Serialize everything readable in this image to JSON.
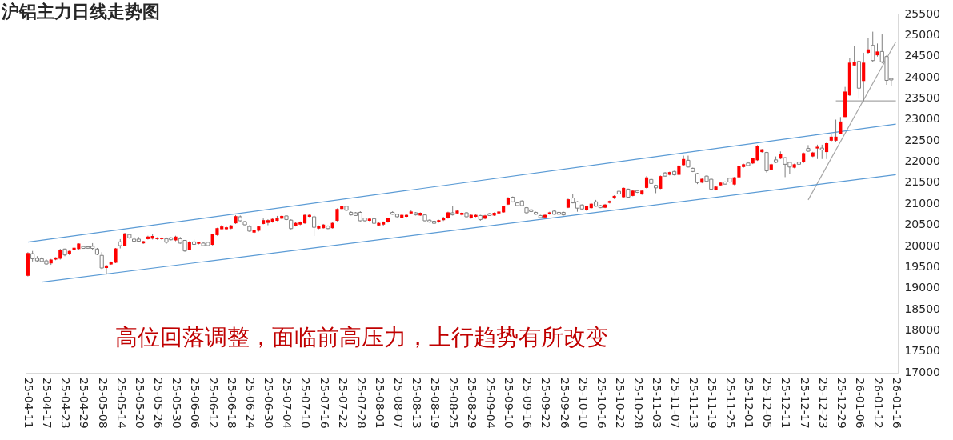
{
  "chart_data": {
    "type": "candlestick",
    "title": "沪铝主力日线走势图",
    "annotations": [
      "高位回落调整，面临前高压力，上行趋势有所改变"
    ],
    "categories": [
      "25-04-11",
      null,
      null,
      null,
      "25-04-17",
      null,
      null,
      null,
      "25-04-23",
      null,
      null,
      null,
      "25-04-29",
      null,
      null,
      null,
      "25-05-08",
      null,
      null,
      null,
      "25-05-14",
      null,
      null,
      null,
      "25-05-20",
      null,
      null,
      null,
      "25-05-26",
      null,
      null,
      null,
      "25-05-30",
      null,
      null,
      null,
      "25-06-06",
      null,
      null,
      null,
      "25-06-12",
      null,
      null,
      null,
      "25-06-18",
      null,
      null,
      null,
      "25-06-24",
      null,
      null,
      null,
      "25-06-30",
      null,
      null,
      null,
      "25-07-04",
      null,
      null,
      null,
      "25-07-10",
      null,
      null,
      null,
      "25-07-16",
      null,
      null,
      null,
      "25-07-22",
      null,
      null,
      null,
      "25-07-28",
      null,
      null,
      null,
      "25-08-01",
      null,
      null,
      null,
      "25-08-07",
      null,
      null,
      null,
      "25-08-13",
      null,
      null,
      null,
      "25-08-19",
      null,
      null,
      null,
      "25-08-25",
      null,
      null,
      null,
      "25-08-29",
      null,
      null,
      null,
      "25-09-04",
      null,
      null,
      null,
      "25-09-10",
      null,
      null,
      null,
      "25-09-16",
      null,
      null,
      null,
      "25-09-22",
      null,
      null,
      null,
      "25-09-26",
      null,
      null,
      null,
      "25-10-10",
      null,
      null,
      null,
      "25-10-16",
      null,
      null,
      null,
      "25-10-22",
      null,
      null,
      null,
      "25-10-28",
      null,
      null,
      null,
      "25-11-03",
      null,
      null,
      null,
      "25-11-07",
      null,
      null,
      null,
      "25-11-13",
      null,
      null,
      null,
      "25-11-19",
      null,
      null,
      null,
      "25-11-25",
      null,
      null,
      null,
      "25-12-01",
      null,
      null,
      null,
      "25-12-05",
      null,
      null,
      null,
      "25-12-11",
      null,
      null,
      null,
      "25-12-17",
      null,
      null,
      null,
      "25-12-23",
      null,
      null,
      null,
      "25-12-29",
      null,
      null,
      null,
      "26-01-06",
      null,
      null,
      null,
      "26-01-12",
      null,
      null,
      null,
      "26-01-16"
    ],
    "colors": [
      "#ff0000",
      "#ffffff",
      "#ffffff",
      "#ffffff",
      "#ffffff",
      "#ff0000",
      "#ff0000",
      "#ff0000",
      "#ffffff",
      "#ff0000",
      "#ff0000",
      "#ff0000",
      "#ffffff",
      "#ffffff",
      "#ffffff",
      "#ffffff",
      "#ffffff",
      "#ff0000",
      "#ff0000",
      "#ff0000",
      "#ffffff",
      "#ff0000",
      "#ffffff",
      "#ffffff",
      "#ffffff",
      "#ff0000",
      "#ff0000",
      "#ff0000",
      "#ff0000",
      "#ff0000",
      "#ffffff",
      "#ffffff",
      "#ff0000",
      "#ffffff",
      "#ffffff",
      "#ff0000",
      "#ffffff",
      "#ff0000",
      "#ffffff",
      "#ffffff",
      "#ff0000",
      "#ff0000",
      "#ff0000",
      "#ff0000",
      "#ff0000",
      "#ff0000",
      "#ffffff",
      "#ffffff",
      "#ffffff",
      "#ff0000",
      "#ff0000",
      "#ff0000",
      "#ff0000",
      "#ff0000",
      "#ff0000",
      "#ff0000",
      "#ffffff",
      "#ffffff",
      "#ff0000",
      "#ff0000",
      "#ff0000",
      "#ff0000",
      "#ffffff",
      "#ff0000",
      "#ff0000",
      "#ffffff",
      "#ff0000",
      "#ff0000",
      "#ff0000",
      "#ffffff",
      "#ffffff",
      "#ffffff",
      "#ffffff",
      "#ffffff",
      "#ff0000",
      "#ffffff",
      "#ff0000",
      "#ff0000",
      "#ff0000",
      "#ffffff",
      "#ffffff",
      "#ff0000",
      "#ff0000",
      "#ff0000",
      "#ffffff",
      "#ff0000",
      "#ffffff",
      "#ffffff",
      "#ffffff",
      "#ff0000",
      "#ff0000",
      "#ff0000",
      "#ffffff",
      "#ff0000",
      "#ff0000",
      "#ffffff",
      "#ff0000",
      "#ff0000",
      "#ffffff",
      "#ff0000",
      "#ffffff",
      "#ff0000",
      "#ff0000",
      "#ff0000",
      "#ff0000",
      "#ffffff",
      "#ffffff",
      "#ffffff",
      "#ffffff",
      "#ffffff",
      "#ffffff",
      "#ffffff",
      "#ff0000",
      "#ff0000",
      "#ffffff",
      "#ffffff",
      "#ffffff",
      "#ff0000",
      "#ffffff",
      "#ffffff",
      "#ffffff",
      "#ff0000",
      "#ff0000",
      "#ffffff",
      "#ffffff",
      "#ff0000",
      "#ff0000",
      "#ff0000",
      "#ffffff",
      "#ff0000",
      "#ffffff",
      "#ff0000",
      "#ffffff",
      "#ff0000",
      "#ff0000",
      "#ffffff",
      "#ffffff",
      "#ff0000",
      "#ffffff",
      "#ff0000",
      "#ffffff",
      "#ff0000",
      "#ff0000",
      "#ffffff",
      "#ffffff",
      "#ffffff",
      "#ff0000",
      "#ffffff",
      "#ffffff",
      "#ff0000",
      "#ff0000",
      "#ffffff",
      "#ffffff",
      "#ff0000",
      "#ff0000",
      "#ff0000",
      "#ffffff",
      "#ff0000",
      "#ff0000",
      "#ff0000",
      "#ffffff",
      "#ff0000",
      "#ffffff",
      "#ff0000",
      "#ffffff",
      "#ffffff",
      "#ff0000",
      "#ffffff",
      "#ff0000",
      "#ffffff",
      "#ff0000",
      "#ff0000",
      "#ffffff",
      "#ff0000",
      "#ff0000",
      "#ff0000",
      "#ff0000",
      "#ff0000",
      "#ff0000",
      "#ff0000",
      "#ffffff",
      "#ff0000",
      "#ff0000",
      "#ffffff",
      "#ff0000",
      "#ffffff",
      "#ffffff",
      "#ffffff",
      null
    ],
    "ohlc": [
      [
        19300,
        19860,
        19285,
        19840
      ],
      [
        19825,
        19890,
        19640,
        19705
      ],
      [
        19715,
        19765,
        19620,
        19655
      ],
      [
        19705,
        19740,
        19620,
        19640
      ],
      [
        19655,
        19690,
        19565,
        19580
      ],
      [
        19595,
        19700,
        19560,
        19685
      ],
      [
        19685,
        19740,
        19670,
        19735
      ],
      [
        19705,
        19940,
        19685,
        19910
      ],
      [
        19935,
        19945,
        19765,
        19795
      ],
      [
        19810,
        19900,
        19790,
        19890
      ],
      [
        19920,
        19970,
        19910,
        19965
      ],
      [
        19935,
        20070,
        19920,
        20065
      ],
      [
        19995,
        20010,
        19940,
        19950
      ],
      [
        19990,
        20010,
        19940,
        19955
      ],
      [
        20000,
        20075,
        19920,
        19950
      ],
      [
        19935,
        19960,
        19790,
        19810
      ],
      [
        19785,
        19860,
        19460,
        19485
      ],
      [
        19485,
        19560,
        19330,
        19545
      ],
      [
        19570,
        19640,
        19560,
        19620
      ],
      [
        19610,
        19960,
        19600,
        19950
      ],
      [
        20105,
        20170,
        19950,
        20015
      ],
      [
        20015,
        20320,
        20000,
        20305
      ],
      [
        20280,
        20300,
        20180,
        20200
      ],
      [
        20170,
        20225,
        20100,
        20120
      ],
      [
        20170,
        20220,
        20100,
        20120
      ],
      [
        20070,
        20130,
        20055,
        20120
      ],
      [
        20170,
        20250,
        20160,
        20230
      ],
      [
        20180,
        20290,
        20160,
        20245
      ],
      [
        20170,
        20215,
        20155,
        20200
      ],
      [
        20170,
        20210,
        20150,
        20200
      ],
      [
        20180,
        20210,
        20060,
        20095
      ],
      [
        20200,
        20215,
        20140,
        20155
      ],
      [
        20140,
        20250,
        20120,
        20230
      ],
      [
        20180,
        20220,
        20060,
        20075
      ],
      [
        20140,
        20150,
        19870,
        19890
      ],
      [
        19920,
        20120,
        19905,
        20105
      ],
      [
        20105,
        20160,
        20040,
        20045
      ],
      [
        20060,
        20110,
        20045,
        20095
      ],
      [
        20075,
        20100,
        20000,
        20015
      ],
      [
        20095,
        20110,
        20000,
        20015
      ],
      [
        20035,
        20300,
        20020,
        20295
      ],
      [
        20265,
        20440,
        20250,
        20430
      ],
      [
        20405,
        20510,
        20400,
        20470
      ],
      [
        20405,
        20465,
        20390,
        20450
      ],
      [
        20420,
        20510,
        20405,
        20495
      ],
      [
        20545,
        20740,
        20530,
        20715
      ],
      [
        20700,
        20730,
        20590,
        20605
      ],
      [
        20585,
        20600,
        20500,
        20510
      ],
      [
        20470,
        20500,
        20345,
        20360
      ],
      [
        20325,
        20390,
        20300,
        20390
      ],
      [
        20370,
        20480,
        20350,
        20470
      ],
      [
        20530,
        20660,
        20520,
        20620
      ],
      [
        20555,
        20640,
        20500,
        20620
      ],
      [
        20575,
        20665,
        20560,
        20650
      ],
      [
        20605,
        20720,
        20595,
        20680
      ],
      [
        20655,
        20730,
        20640,
        20720
      ],
      [
        20720,
        20730,
        20620,
        20635
      ],
      [
        20620,
        20640,
        20400,
        20420
      ],
      [
        20480,
        20570,
        20470,
        20555
      ],
      [
        20515,
        20590,
        20500,
        20575
      ],
      [
        20545,
        20760,
        20530,
        20745
      ],
      [
        20700,
        20760,
        20690,
        20745
      ],
      [
        20700,
        20740,
        20245,
        20450
      ],
      [
        20420,
        20495,
        20405,
        20480
      ],
      [
        20430,
        20530,
        20420,
        20515
      ],
      [
        20480,
        20495,
        20405,
        20420
      ],
      [
        20430,
        20570,
        20420,
        20555
      ],
      [
        20605,
        20900,
        20590,
        20885
      ],
      [
        20885,
        20960,
        20880,
        20950
      ],
      [
        20950,
        20960,
        20840,
        20855
      ],
      [
        20805,
        20830,
        20730,
        20745
      ],
      [
        20795,
        20810,
        20720,
        20730
      ],
      [
        20805,
        20830,
        20590,
        20605
      ],
      [
        20670,
        20680,
        20590,
        20605
      ],
      [
        20605,
        20670,
        20595,
        20655
      ],
      [
        20655,
        20670,
        20530,
        20545
      ],
      [
        20495,
        20570,
        20480,
        20555
      ],
      [
        20515,
        20590,
        20480,
        20575
      ],
      [
        20575,
        20680,
        20560,
        20670
      ],
      [
        20805,
        20830,
        20750,
        20760
      ],
      [
        20760,
        20775,
        20690,
        20700
      ],
      [
        20680,
        20755,
        20670,
        20745
      ],
      [
        20700,
        20755,
        20690,
        20745
      ],
      [
        20780,
        20850,
        20770,
        20825
      ],
      [
        20795,
        20810,
        20730,
        20745
      ],
      [
        20730,
        20805,
        20720,
        20795
      ],
      [
        20745,
        20760,
        20595,
        20605
      ],
      [
        20620,
        20635,
        20560,
        20575
      ],
      [
        20595,
        20610,
        20530,
        20545
      ],
      [
        20575,
        20630,
        20560,
        20620
      ],
      [
        20620,
        20700,
        20600,
        20670
      ],
      [
        20670,
        20820,
        20655,
        20805
      ],
      [
        20795,
        20965,
        20730,
        20745
      ],
      [
        20780,
        20855,
        20770,
        20845
      ],
      [
        20745,
        20805,
        20730,
        20795
      ],
      [
        20795,
        20810,
        20690,
        20700
      ],
      [
        20670,
        20755,
        20655,
        20745
      ],
      [
        20700,
        20755,
        20690,
        20745
      ],
      [
        20730,
        20745,
        20605,
        20635
      ],
      [
        20655,
        20745,
        20640,
        20730
      ],
      [
        20775,
        20790,
        20720,
        20730
      ],
      [
        20730,
        20805,
        20720,
        20795
      ],
      [
        20780,
        20835,
        20770,
        20825
      ],
      [
        20805,
        20960,
        20795,
        20950
      ],
      [
        20990,
        21165,
        20980,
        21155
      ],
      [
        21165,
        21180,
        21040,
        21055
      ],
      [
        21030,
        21045,
        20955,
        20965
      ],
      [
        21075,
        21090,
        20955,
        20965
      ],
      [
        20915,
        20930,
        20780,
        20795
      ],
      [
        20865,
        20880,
        20810,
        20825
      ],
      [
        20805,
        20820,
        20750,
        20760
      ],
      [
        20730,
        20745,
        20670,
        20680
      ],
      [
        20685,
        20755,
        20675,
        20745
      ],
      [
        20760,
        20820,
        20750,
        20805
      ],
      [
        20835,
        20850,
        20750,
        20760
      ],
      [
        20805,
        20820,
        20750,
        20760
      ],
      [
        20805,
        20820,
        20730,
        20745
      ],
      [
        20915,
        21130,
        20905,
        21115
      ],
      [
        21145,
        21240,
        21020,
        21030
      ],
      [
        21055,
        21070,
        20820,
        20905
      ],
      [
        20980,
        20995,
        20870,
        20885
      ],
      [
        20855,
        20960,
        20840,
        20950
      ],
      [
        20905,
        21025,
        20890,
        21010
      ],
      [
        21055,
        21100,
        20940,
        20950
      ],
      [
        20965,
        20980,
        20905,
        20915
      ],
      [
        20915,
        21005,
        20905,
        20990
      ],
      [
        21030,
        21085,
        21015,
        21075
      ],
      [
        21135,
        21210,
        21120,
        21195
      ],
      [
        21305,
        21320,
        21230,
        21240
      ],
      [
        21165,
        21395,
        21150,
        21385
      ],
      [
        21355,
        21370,
        21150,
        21165
      ],
      [
        21195,
        21335,
        21185,
        21320
      ],
      [
        21320,
        21340,
        21265,
        21280
      ],
      [
        21230,
        21335,
        21220,
        21320
      ],
      [
        21385,
        21665,
        21370,
        21635
      ],
      [
        21585,
        21600,
        21480,
        21490
      ],
      [
        21445,
        21460,
        21260,
        21385
      ],
      [
        21365,
        21680,
        21355,
        21665
      ],
      [
        21740,
        21760,
        21650,
        21665
      ],
      [
        21695,
        21770,
        21680,
        21760
      ],
      [
        21775,
        21790,
        21680,
        21695
      ],
      [
        21695,
        21925,
        21680,
        21915
      ],
      [
        21925,
        22150,
        21910,
        22070
      ],
      [
        22040,
        22150,
        21870,
        21880
      ],
      [
        21850,
        21865,
        21760,
        21775
      ],
      [
        21725,
        21740,
        21475,
        21510
      ],
      [
        21510,
        21615,
        21495,
        21600
      ],
      [
        21665,
        21680,
        21525,
        21540
      ],
      [
        21590,
        21605,
        21335,
        21355
      ],
      [
        21340,
        21430,
        21325,
        21415
      ],
      [
        21445,
        21525,
        21430,
        21510
      ],
      [
        21525,
        21540,
        21465,
        21475
      ],
      [
        21615,
        21630,
        21510,
        21525
      ],
      [
        21465,
        21645,
        21450,
        21635
      ],
      [
        21635,
        21920,
        21620,
        21900
      ],
      [
        21880,
        21960,
        21865,
        21945
      ],
      [
        21975,
        22010,
        21900,
        21915
      ],
      [
        21965,
        22100,
        21950,
        22090
      ],
      [
        22040,
        22400,
        22025,
        22380
      ],
      [
        22235,
        22310,
        22220,
        22300
      ],
      [
        22225,
        22240,
        21750,
        21790
      ],
      [
        21820,
        21960,
        21805,
        21945
      ],
      [
        22050,
        22130,
        21975,
        21990
      ],
      [
        22080,
        22250,
        22065,
        22195
      ],
      [
        22100,
        22115,
        21640,
        21945
      ],
      [
        21990,
        22005,
        21720,
        21880
      ],
      [
        21865,
        21960,
        21850,
        21945
      ],
      [
        21995,
        22010,
        21930,
        21945
      ],
      [
        21990,
        22225,
        21975,
        22210
      ],
      [
        22320,
        22400,
        22240,
        22255
      ],
      [
        22130,
        22240,
        22115,
        22225
      ],
      [
        22320,
        22410,
        22070,
        22360
      ],
      [
        22330,
        22410,
        22070,
        22285
      ],
      [
        22235,
        22460,
        22070,
        22445
      ],
      [
        22505,
        22660,
        22470,
        22600
      ],
      [
        22505,
        23005,
        22470,
        22600
      ],
      [
        22660,
        23065,
        22655,
        22960
      ],
      [
        23065,
        23780,
        23065,
        23670
      ],
      [
        23580,
        24465,
        23565,
        24355
      ],
      [
        24290,
        24745,
        24280,
        24375
      ],
      [
        24385,
        24405,
        23500,
        23750
      ],
      [
        23920,
        24590,
        23440,
        24355
      ],
      [
        24590,
        24935,
        24560,
        24670
      ],
      [
        24765,
        25090,
        24370,
        24405
      ],
      [
        24530,
        24810,
        24500,
        24620
      ],
      [
        24620,
        25025,
        24340,
        24375
      ],
      [
        24500,
        24530,
        23830,
        23935
      ],
      [
        23980,
        24000,
        23795,
        23945
      ],
      null
    ],
    "series": [
      {
        "type": "line",
        "color": "#5b9bd5",
        "values": [
          20100,
          null,
          null,
          null,
          null,
          null,
          null,
          null,
          null,
          null,
          null,
          null,
          null,
          null,
          null,
          null,
          null,
          null,
          null,
          null,
          null,
          null,
          null,
          null,
          null,
          null,
          null,
          null,
          null,
          null,
          null,
          null,
          null,
          null,
          null,
          null,
          null,
          null,
          null,
          null,
          null,
          null,
          null,
          null,
          null,
          null,
          null,
          null,
          null,
          null,
          null,
          null,
          null,
          null,
          null,
          null,
          null,
          null,
          null,
          null,
          null,
          null,
          null,
          null,
          null,
          null,
          null,
          null,
          null,
          null,
          null,
          null,
          null,
          null,
          null,
          null,
          null,
          null,
          null,
          null,
          null,
          null,
          null,
          null,
          null,
          null,
          null,
          null,
          null,
          null,
          null,
          null,
          null,
          null,
          null,
          null,
          null,
          null,
          null,
          null,
          null,
          null,
          null,
          null,
          null,
          null,
          null,
          null,
          null,
          null,
          null,
          null,
          null,
          null,
          null,
          null,
          null,
          null,
          null,
          null,
          null,
          null,
          null,
          null,
          null,
          null,
          null,
          null,
          null,
          null,
          null,
          null,
          null,
          null,
          null,
          null,
          null,
          null,
          null,
          null,
          null,
          null,
          null,
          null,
          null,
          null,
          null,
          null,
          null,
          null,
          null,
          null,
          null,
          null,
          null,
          null,
          null,
          null,
          null,
          null,
          null,
          null,
          null,
          null,
          null,
          null,
          null,
          null,
          null,
          null,
          null,
          null,
          null,
          null,
          null,
          null,
          null,
          null,
          null,
          null,
          null,
          null,
          null,
          null,
          null,
          null,
          null,
          null,
          22900
        ]
      },
      {
        "type": "line",
        "color": "#5b9bd5",
        "values": [
          null,
          null,
          null,
          19150,
          null,
          null,
          null,
          null,
          null,
          null,
          null,
          null,
          null,
          null,
          null,
          null,
          null,
          null,
          null,
          null,
          null,
          null,
          null,
          null,
          null,
          null,
          null,
          null,
          null,
          null,
          null,
          null,
          null,
          null,
          null,
          null,
          null,
          null,
          null,
          null,
          null,
          null,
          null,
          null,
          null,
          null,
          null,
          null,
          null,
          null,
          null,
          null,
          null,
          null,
          null,
          null,
          null,
          null,
          null,
          null,
          null,
          null,
          null,
          null,
          null,
          null,
          null,
          null,
          null,
          null,
          null,
          null,
          null,
          null,
          null,
          null,
          null,
          null,
          null,
          null,
          null,
          null,
          null,
          null,
          null,
          null,
          null,
          null,
          null,
          null,
          null,
          null,
          null,
          null,
          null,
          null,
          null,
          null,
          null,
          null,
          null,
          null,
          null,
          null,
          null,
          null,
          null,
          null,
          null,
          null,
          null,
          null,
          null,
          null,
          null,
          null,
          null,
          null,
          null,
          null,
          null,
          null,
          null,
          null,
          null,
          null,
          null,
          null,
          null,
          null,
          null,
          null,
          null,
          null,
          null,
          null,
          null,
          null,
          null,
          null,
          null,
          null,
          null,
          null,
          null,
          null,
          null,
          null,
          null,
          null,
          null,
          null,
          null,
          null,
          null,
          null,
          null,
          null,
          null,
          null,
          null,
          null,
          null,
          null,
          null,
          null,
          null,
          null,
          null,
          null,
          null,
          null,
          null,
          null,
          null,
          null,
          null,
          null,
          null,
          null,
          null,
          null,
          null,
          null,
          null,
          null,
          null,
          null,
          21700
        ]
      },
      {
        "type": "line",
        "color": "#a6a6a6",
        "values": [
          null,
          null,
          null,
          null,
          null,
          null,
          null,
          null,
          null,
          null,
          null,
          null,
          null,
          null,
          null,
          null,
          null,
          null,
          null,
          null,
          null,
          null,
          null,
          null,
          null,
          null,
          null,
          null,
          null,
          null,
          null,
          null,
          null,
          null,
          null,
          null,
          null,
          null,
          null,
          null,
          null,
          null,
          null,
          null,
          null,
          null,
          null,
          null,
          null,
          null,
          null,
          null,
          null,
          null,
          null,
          null,
          null,
          null,
          null,
          null,
          null,
          null,
          null,
          null,
          null,
          null,
          null,
          null,
          null,
          null,
          null,
          null,
          null,
          null,
          null,
          null,
          null,
          null,
          null,
          null,
          null,
          null,
          null,
          null,
          null,
          null,
          null,
          null,
          null,
          null,
          null,
          null,
          null,
          null,
          null,
          null,
          null,
          null,
          null,
          null,
          null,
          null,
          null,
          null,
          null,
          null,
          null,
          null,
          null,
          null,
          null,
          null,
          null,
          null,
          null,
          null,
          null,
          null,
          null,
          null,
          null,
          null,
          null,
          null,
          null,
          null,
          null,
          null,
          null,
          null,
          null,
          null,
          null,
          null,
          null,
          null,
          null,
          null,
          null,
          null,
          null,
          null,
          null,
          null,
          null,
          null,
          null,
          null,
          null,
          null,
          null,
          null,
          null,
          null,
          null,
          null,
          null,
          null,
          null,
          null,
          null,
          null,
          null,
          null,
          null,
          null,
          null,
          null,
          null,
          21100,
          null,
          null,
          null,
          null,
          null,
          null,
          null,
          null,
          null,
          null,
          null,
          null,
          null,
          null,
          null,
          null,
          null,
          null,
          24850
        ]
      },
      {
        "type": "line",
        "color": "#a6a6a6",
        "values": [
          null,
          null,
          null,
          null,
          null,
          null,
          null,
          null,
          null,
          null,
          null,
          null,
          null,
          null,
          null,
          null,
          null,
          null,
          null,
          null,
          null,
          null,
          null,
          null,
          null,
          null,
          null,
          null,
          null,
          null,
          null,
          null,
          null,
          null,
          null,
          null,
          null,
          null,
          null,
          null,
          null,
          null,
          null,
          null,
          null,
          null,
          null,
          null,
          null,
          null,
          null,
          null,
          null,
          null,
          null,
          null,
          null,
          null,
          null,
          null,
          null,
          null,
          null,
          null,
          null,
          null,
          null,
          null,
          null,
          null,
          null,
          null,
          null,
          null,
          null,
          null,
          null,
          null,
          null,
          null,
          null,
          null,
          null,
          null,
          null,
          null,
          null,
          null,
          null,
          null,
          null,
          null,
          null,
          null,
          null,
          null,
          null,
          null,
          null,
          null,
          null,
          null,
          null,
          null,
          null,
          null,
          null,
          null,
          null,
          null,
          null,
          null,
          null,
          null,
          null,
          null,
          null,
          null,
          null,
          null,
          null,
          null,
          null,
          null,
          null,
          null,
          null,
          null,
          null,
          null,
          null,
          null,
          null,
          null,
          null,
          null,
          null,
          null,
          null,
          null,
          null,
          null,
          null,
          null,
          null,
          null,
          null,
          null,
          null,
          null,
          null,
          null,
          null,
          null,
          null,
          null,
          null,
          null,
          null,
          null,
          null,
          null,
          null,
          null,
          null,
          null,
          null,
          null,
          null,
          null,
          null,
          null,
          null,
          null,
          null,
          23450,
          null,
          null,
          null,
          null,
          null,
          null,
          null,
          null,
          null,
          null,
          null,
          null,
          23450
        ]
      }
    ],
    "ylim": [
      17000,
      25500
    ],
    "yticks": [
      17000,
      17500,
      18000,
      18500,
      19000,
      19500,
      20000,
      20500,
      21000,
      21500,
      22000,
      22500,
      23000,
      23500,
      24000,
      24500,
      25000,
      25500
    ],
    "grid": false
  }
}
